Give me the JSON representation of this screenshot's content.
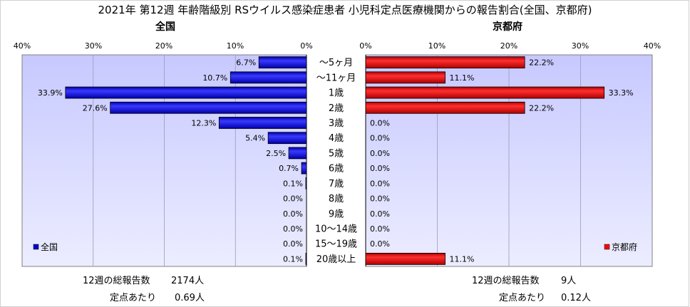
{
  "chart_data": {
    "type": "bar",
    "title": "2021年 第12週 年齢階級別 RSウイルス感染症患者 小児科定点医療機関からの報告割合(全国、京都府)",
    "categories": [
      "～5ヶ月",
      "～11ヶ月",
      "1歳",
      "2歳",
      "3歳",
      "4歳",
      "5歳",
      "6歳",
      "7歳",
      "8歳",
      "9歳",
      "10～14歳",
      "15～19歳",
      "20歳以上"
    ],
    "xlim": [
      0,
      40
    ],
    "ticks": [
      "0%",
      "10%",
      "20%",
      "30%",
      "40%"
    ],
    "left_axis_ticks": [
      "40%",
      "30%",
      "20%",
      "10%",
      "0%"
    ],
    "grid": true,
    "panels": [
      {
        "name": "全国",
        "title": "全国",
        "color": "#0000cc",
        "legend_position": "bottom-left",
        "values": [
          6.7,
          10.7,
          33.9,
          27.6,
          12.3,
          5.4,
          2.5,
          0.7,
          0.1,
          0.0,
          0.0,
          0.0,
          0.0,
          0.1
        ],
        "labels": [
          "6.7%",
          "10.7%",
          "33.9%",
          "27.6%",
          "12.3%",
          "5.4%",
          "2.5%",
          "0.7%",
          "0.1%",
          "0.0%",
          "0.0%",
          "0.0%",
          "0.0%",
          "0.1%"
        ]
      },
      {
        "name": "京都府",
        "title": "京都府",
        "color": "#ff0000",
        "legend_position": "bottom-right",
        "values": [
          22.2,
          11.1,
          33.3,
          22.2,
          0.0,
          0.0,
          0.0,
          0.0,
          0.0,
          0.0,
          0.0,
          0.0,
          0.0,
          11.1
        ],
        "labels": [
          "22.2%",
          "11.1%",
          "33.3%",
          "22.2%",
          "0.0%",
          "0.0%",
          "0.0%",
          "0.0%",
          "0.0%",
          "0.0%",
          "0.0%",
          "0.0%",
          "0.0%",
          "11.1%"
        ]
      }
    ]
  },
  "footer": {
    "left": {
      "total_label": "12週の総報告数",
      "total_value": "2174人",
      "per_label": "定点あたり",
      "per_value": "0.69人"
    },
    "right": {
      "total_label": "12週の総報告数",
      "total_value": "9人",
      "per_label": "定点あたり",
      "per_value": "0.12人"
    }
  }
}
